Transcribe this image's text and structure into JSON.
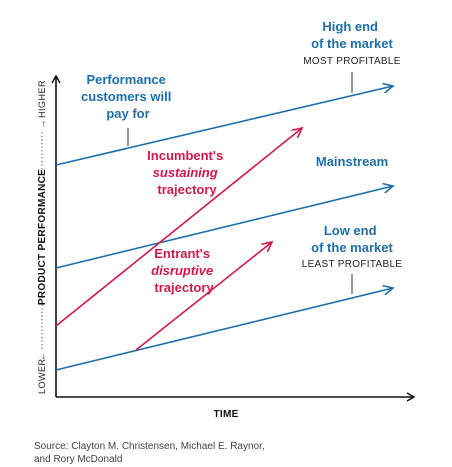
{
  "colors": {
    "blue": "#1d6fa8",
    "red": "#d0184a",
    "axis": "#111111"
  },
  "axes": {
    "x_label": "TIME",
    "y_label": "PRODUCT PERFORMANCE",
    "y_low": "LOWER",
    "y_high": "HIGHER",
    "y_low_arrow": "←",
    "y_high_arrow": "→"
  },
  "labels": {
    "performance": [
      "Performance",
      "customers will",
      "pay for"
    ],
    "high_end": [
      "High end",
      "of the market"
    ],
    "high_end_sub": "MOST PROFITABLE",
    "mainstream": "Mainstream",
    "low_end": [
      "Low end",
      "of the market"
    ],
    "low_end_sub": "LEAST PROFITABLE",
    "incumbent": [
      "Incumbent's",
      "sustaining",
      "trajectory"
    ],
    "entrant": [
      "Entrant's",
      "disruptive",
      "trajectory"
    ]
  },
  "source": [
    "Source: Clayton M. Christensen, Michael E. Raynor,",
    "and Rory McDonald"
  ]
}
